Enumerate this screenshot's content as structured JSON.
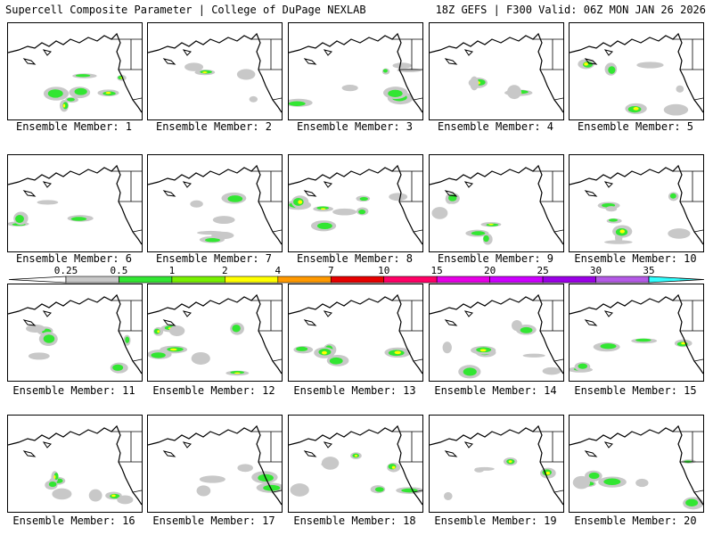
{
  "header": {
    "left": "Supercell Composite Parameter | College of DuPage NEXLAB",
    "right": "18Z GEFS | F300 Valid: 06Z MON JAN 26 2026"
  },
  "colorbar": {
    "ticks": [
      "0.25",
      "0.5",
      "1",
      "2",
      "4",
      "7",
      "10",
      "15",
      "20",
      "25",
      "30",
      "35"
    ],
    "colors": [
      "#c8c8c8",
      "#32e632",
      "#78f000",
      "#ffff00",
      "#ff9900",
      "#e60000",
      "#ff0066",
      "#e600e6",
      "#cc00ff",
      "#9a00e6",
      "#b45ae6",
      "#32ffff"
    ]
  },
  "members": [
    {
      "label": "Ensemble Member: 1"
    },
    {
      "label": "Ensemble Member: 2"
    },
    {
      "label": "Ensemble Member: 3"
    },
    {
      "label": "Ensemble Member: 4"
    },
    {
      "label": "Ensemble Member: 5"
    },
    {
      "label": "Ensemble Member: 6"
    },
    {
      "label": "Ensemble Member: 7"
    },
    {
      "label": "Ensemble Member: 8"
    },
    {
      "label": "Ensemble Member: 9"
    },
    {
      "label": "Ensemble Member: 10"
    },
    {
      "label": "Ensemble Member: 11"
    },
    {
      "label": "Ensemble Member: 12"
    },
    {
      "label": "Ensemble Member: 13"
    },
    {
      "label": "Ensemble Member: 14"
    },
    {
      "label": "Ensemble Member: 15"
    },
    {
      "label": "Ensemble Member: 16"
    },
    {
      "label": "Ensemble Member: 17"
    },
    {
      "label": "Ensemble Member: 18"
    },
    {
      "label": "Ensemble Member: 19"
    },
    {
      "label": "Ensemble Member: 20"
    }
  ]
}
